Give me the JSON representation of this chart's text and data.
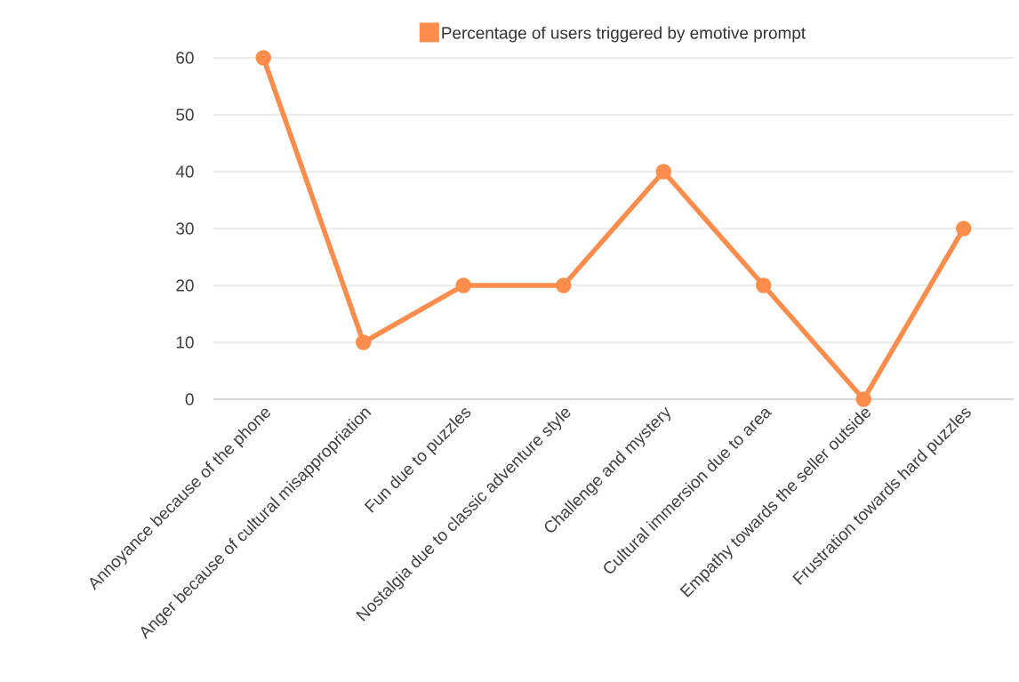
{
  "chart_data": {
    "type": "line",
    "categories": [
      "Annoyance because of the phone",
      "Anger because of cultural misappropriation",
      "Fun due to puzzles",
      "Nostalgia due to classic adventure style",
      "Challenge and mystery",
      "Cultural immersion due to area",
      "Empathy towards the seller outside",
      "Frustration towards hard puzzles"
    ],
    "series": [
      {
        "name": "Percentage of users triggered by emotive prompt",
        "color": "#fc8d4c",
        "values": [
          60,
          10,
          20,
          20,
          40,
          20,
          0,
          30
        ]
      }
    ],
    "ylim": [
      0,
      60
    ],
    "yticks": [
      0,
      10,
      20,
      30,
      40,
      50,
      60
    ],
    "grid": "y",
    "legend": "top",
    "marker": "circle",
    "line_style": "solid"
  }
}
